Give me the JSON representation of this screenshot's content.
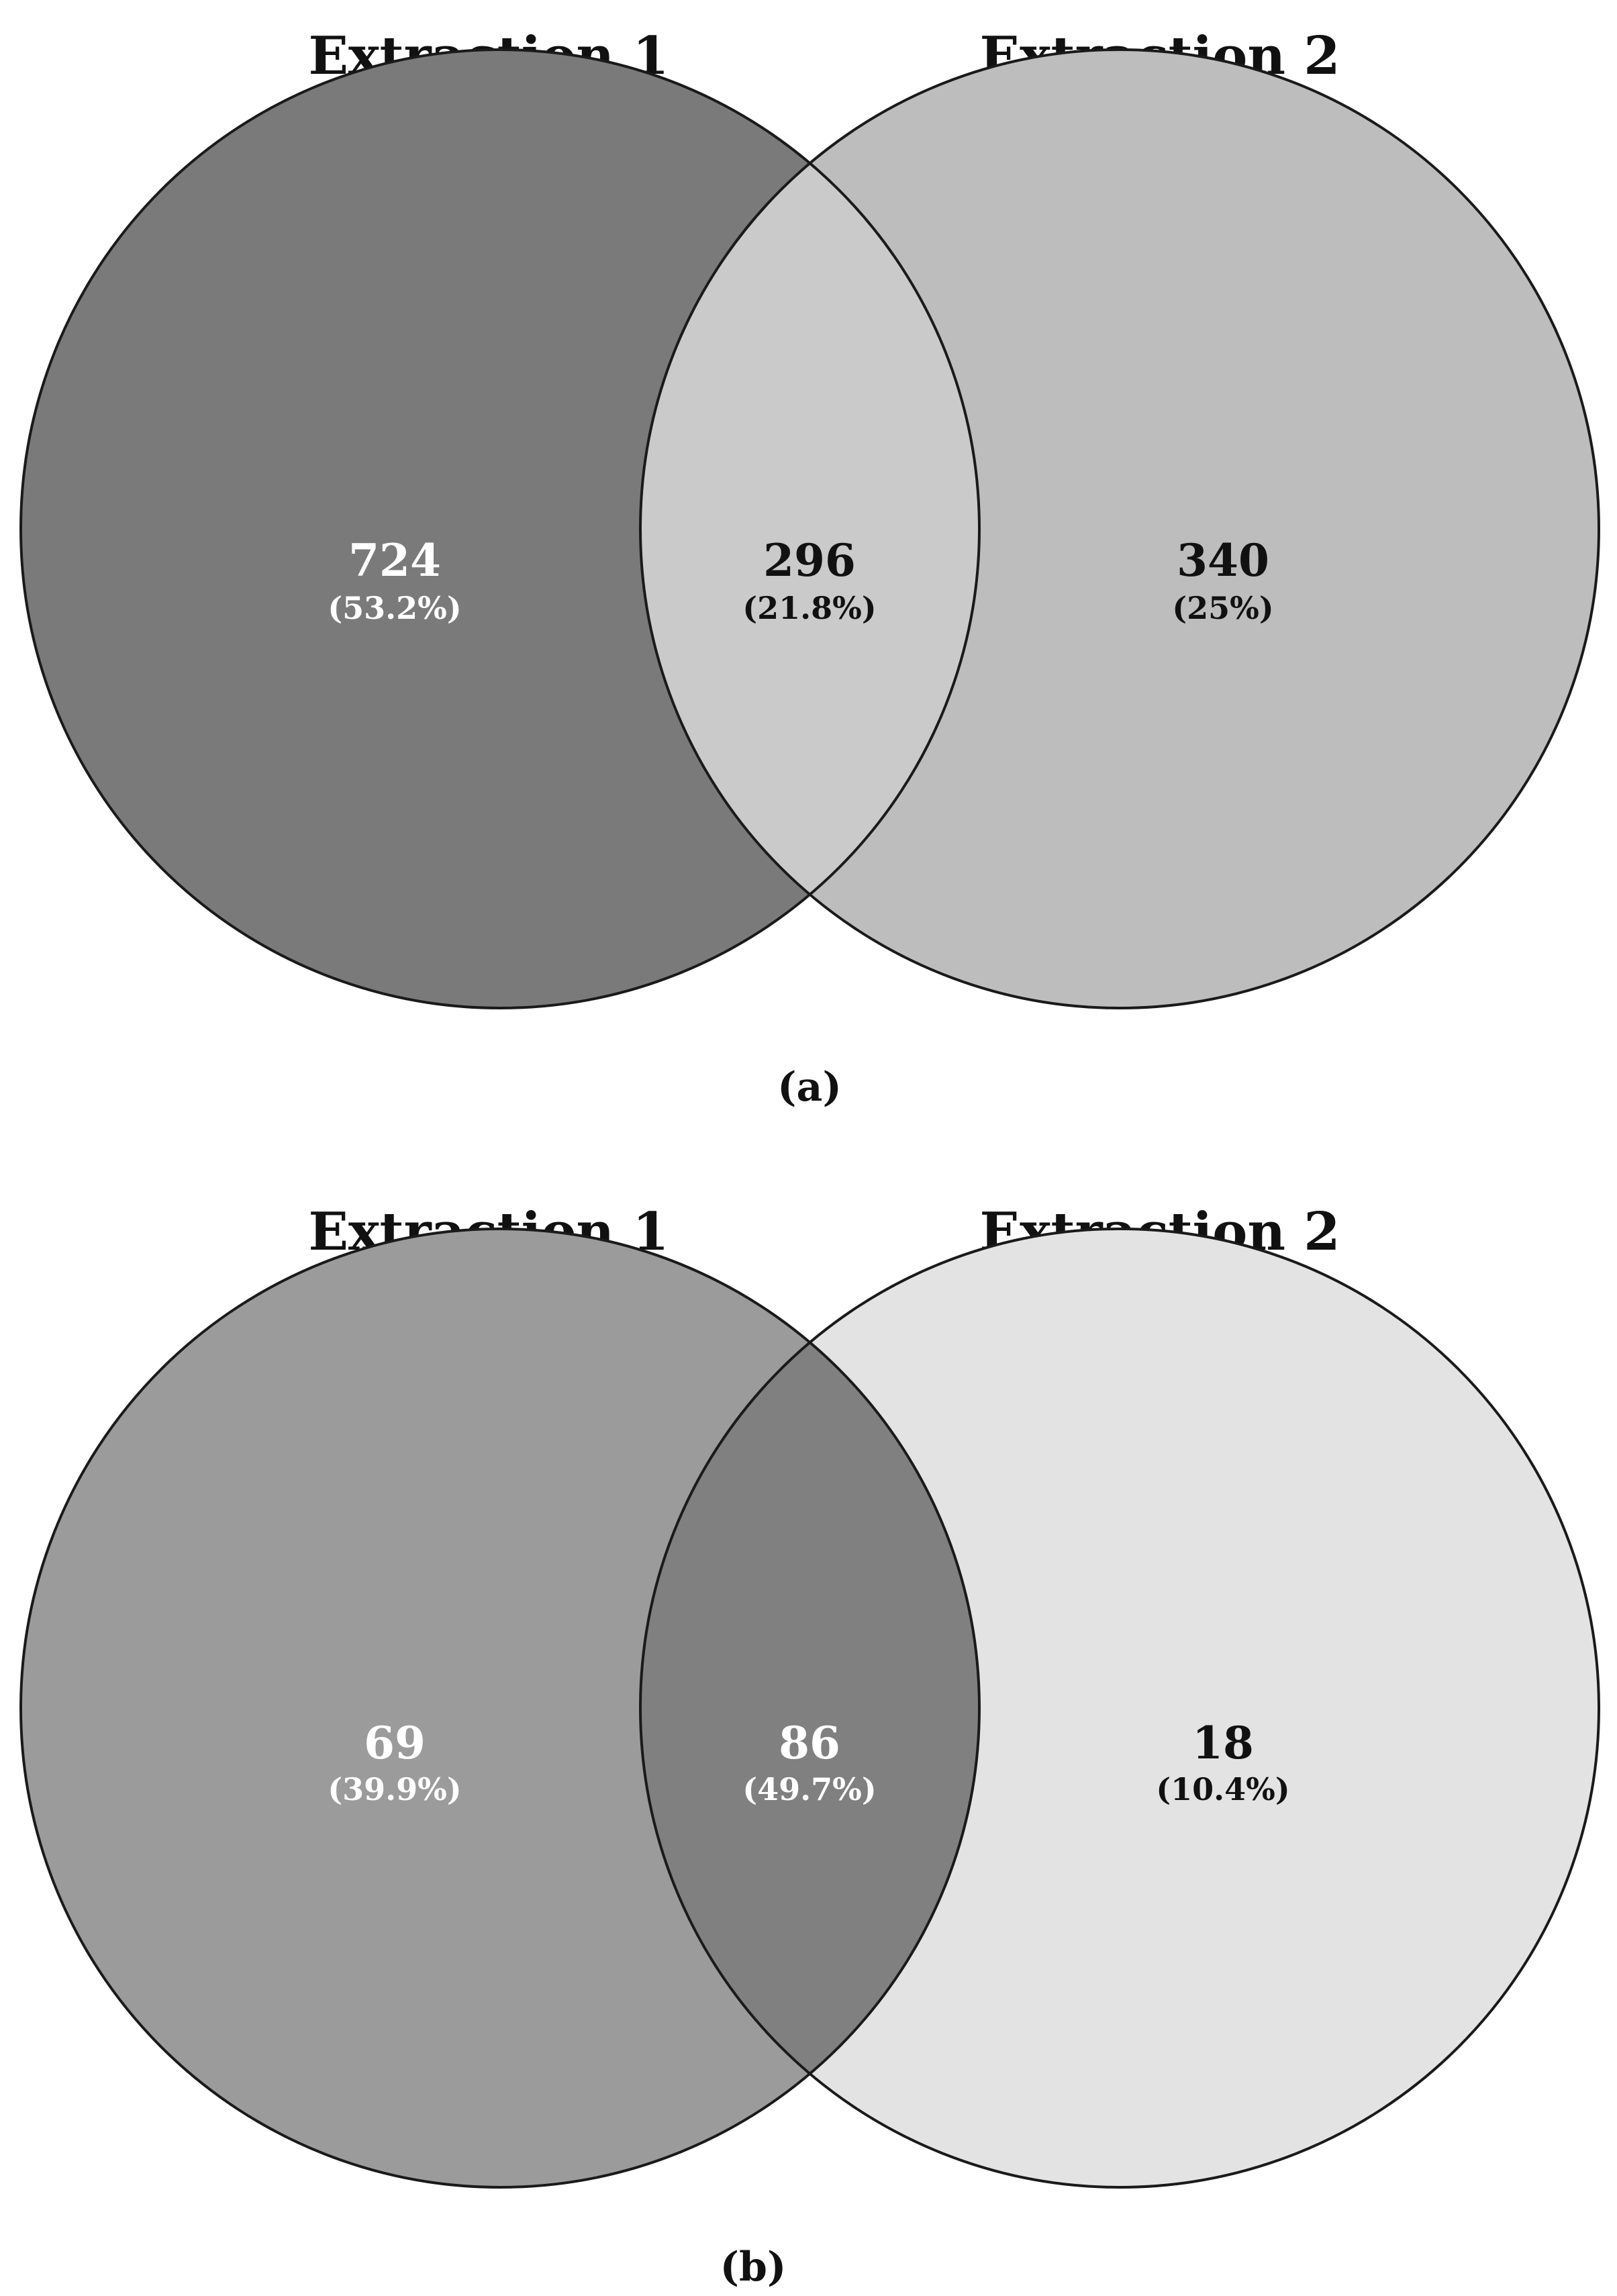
{
  "panels": [
    {
      "label": "(a)",
      "set_a_title": "Extraction 1",
      "set_b_title": "Extraction 2",
      "colors": {
        "only_a": "#7a7a7a",
        "overlap": "#cacaca",
        "only_b": "#bdbdbd",
        "only_a_text": "#ffffff",
        "overlap_text": "#111111",
        "only_b_text": "#111111"
      },
      "regions": {
        "only_a": {
          "count": "724",
          "percent": "(53.2%)"
        },
        "overlap": {
          "count": "296",
          "percent": "(21.8%)"
        },
        "only_b": {
          "count": "340",
          "percent": "(25%)"
        }
      }
    },
    {
      "label": "(b)",
      "set_a_title": "Extraction 1",
      "set_b_title": "Extraction 2",
      "colors": {
        "only_a": "#9b9b9b",
        "overlap": "#808080",
        "only_b": "#e3e3e3",
        "only_a_text": "#ffffff",
        "overlap_text": "#ffffff",
        "only_b_text": "#111111"
      },
      "regions": {
        "only_a": {
          "count": "69",
          "percent": "(39.9%)"
        },
        "overlap": {
          "count": "86",
          "percent": "(49.7%)"
        },
        "only_b": {
          "count": "18",
          "percent": "(10.4%)"
        }
      }
    }
  ]
}
